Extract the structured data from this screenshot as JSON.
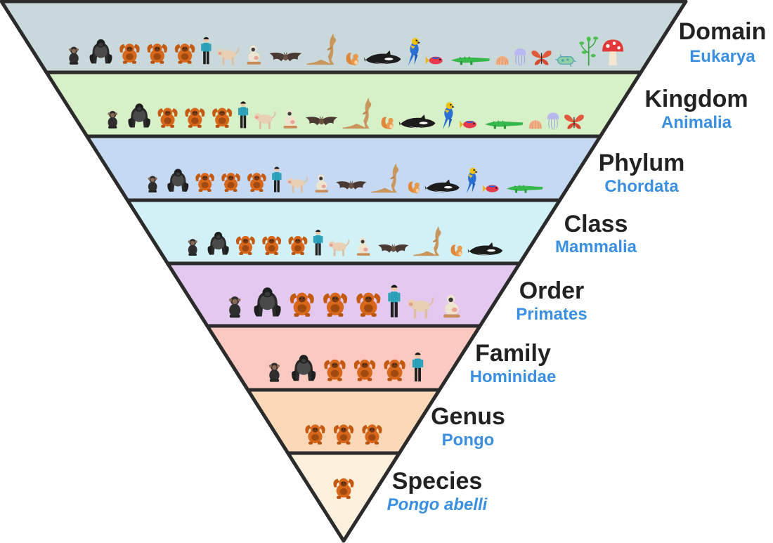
{
  "diagram": {
    "colors": {
      "outline": "#2b2b2b",
      "taxon_text": "#3a8fe0",
      "rank_text": "#222222"
    },
    "levels": [
      {
        "rank": "Domain",
        "taxon": "Eukarya",
        "italic": false,
        "fill": "#c9d8da",
        "organisms": [
          "chimpanzee-icon",
          "gorilla-icon",
          "orangutan-icon",
          "orangutan-icon",
          "orangutan-icon",
          "human-icon",
          "macaque-icon",
          "gibbon-icon",
          "bat-icon",
          "kangaroo-icon",
          "squirrel-icon",
          "orca-icon",
          "parrot-icon",
          "fish-icon",
          "crocodile-icon",
          "shell-icon",
          "jellyfish-icon",
          "butterfly-icon",
          "bacterium-icon",
          "plant-icon",
          "mushroom-icon"
        ]
      },
      {
        "rank": "Kingdom",
        "taxon": "Animalia",
        "italic": false,
        "fill": "#d6f0c8",
        "organisms": [
          "chimpanzee-icon",
          "gorilla-icon",
          "orangutan-icon",
          "orangutan-icon",
          "orangutan-icon",
          "human-icon",
          "macaque-icon",
          "gibbon-icon",
          "bat-icon",
          "kangaroo-icon",
          "squirrel-icon",
          "orca-icon",
          "parrot-icon",
          "fish-icon",
          "crocodile-icon",
          "shell-icon",
          "jellyfish-icon",
          "butterfly-icon"
        ]
      },
      {
        "rank": "Phylum",
        "taxon": "Chordata",
        "italic": false,
        "fill": "#c6d9f2",
        "organisms": [
          "chimpanzee-icon",
          "gorilla-icon",
          "orangutan-icon",
          "orangutan-icon",
          "orangutan-icon",
          "human-icon",
          "macaque-icon",
          "gibbon-icon",
          "bat-icon",
          "kangaroo-icon",
          "squirrel-icon",
          "orca-icon",
          "parrot-icon",
          "fish-icon",
          "crocodile-icon"
        ]
      },
      {
        "rank": "Class",
        "taxon": "Mammalia",
        "italic": false,
        "fill": "#d2f1f7",
        "organisms": [
          "chimpanzee-icon",
          "gorilla-icon",
          "orangutan-icon",
          "orangutan-icon",
          "orangutan-icon",
          "human-icon",
          "macaque-icon",
          "gibbon-icon",
          "bat-icon",
          "kangaroo-icon",
          "squirrel-icon",
          "orca-icon"
        ]
      },
      {
        "rank": "Order",
        "taxon": "Primates",
        "italic": false,
        "fill": "#e3c8ef",
        "organisms": [
          "chimpanzee-icon",
          "gorilla-icon",
          "orangutan-icon",
          "orangutan-icon",
          "orangutan-icon",
          "human-icon",
          "macaque-icon",
          "gibbon-icon"
        ]
      },
      {
        "rank": "Family",
        "taxon": "Hominidae",
        "italic": false,
        "fill": "#fbc9bf",
        "organisms": [
          "chimpanzee-icon",
          "gorilla-icon",
          "orangutan-icon",
          "orangutan-icon",
          "orangutan-icon",
          "human-icon"
        ]
      },
      {
        "rank": "Genus",
        "taxon": "Pongo",
        "italic": false,
        "fill": "#fbd9b8",
        "organisms": [
          "orangutan-icon",
          "orangutan-icon",
          "orangutan-icon"
        ]
      },
      {
        "rank": "Species",
        "taxon": "Pongo abelli",
        "italic": true,
        "fill": "#fdf0dd",
        "organisms": [
          "orangutan-icon"
        ]
      }
    ]
  }
}
